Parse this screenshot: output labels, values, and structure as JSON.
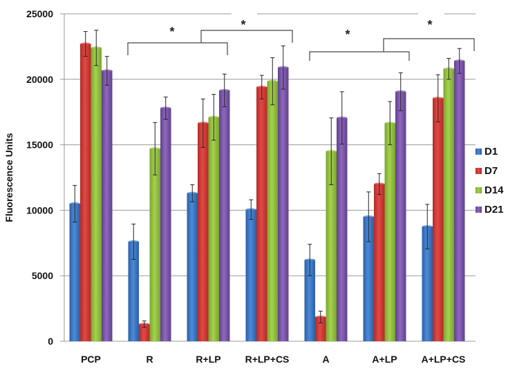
{
  "chart_data": {
    "type": "bar",
    "title": "",
    "xlabel": "",
    "ylabel": "Fluorescence Units",
    "ylim": [
      0,
      25000
    ],
    "yticks": [
      0,
      5000,
      10000,
      15000,
      20000,
      25000
    ],
    "grid": true,
    "legend_position": "right",
    "categories": [
      "PCP",
      "R",
      "R+LP",
      "R+LP+CS",
      "A",
      "A+LP",
      "A+LP+CS"
    ],
    "series": [
      {
        "name": "D1",
        "color": "#3b78c8",
        "values": [
          10500,
          7600,
          11300,
          10050,
          6200,
          9500,
          8750
        ],
        "errors": [
          1400,
          1350,
          650,
          750,
          1200,
          1900,
          1700
        ]
      },
      {
        "name": "D7",
        "color": "#d63a36",
        "values": [
          22700,
          1300,
          16650,
          19400,
          1850,
          12000,
          18550
        ],
        "errors": [
          950,
          250,
          1850,
          900,
          450,
          800,
          1800
        ]
      },
      {
        "name": "D14",
        "color": "#94c23e",
        "values": [
          22400,
          14700,
          17100,
          19850,
          14500,
          16650,
          20800
        ],
        "errors": [
          1350,
          2000,
          1750,
          1800,
          2550,
          1650,
          800
        ]
      },
      {
        "name": "D21",
        "color": "#7c56aa",
        "values": [
          20650,
          17800,
          19150,
          20900,
          17050,
          19050,
          21400
        ],
        "errors": [
          1100,
          850,
          1250,
          1650,
          2000,
          1450,
          950
        ]
      }
    ],
    "annotations": [
      {
        "text": "*",
        "from": "R",
        "to": "R+LP"
      },
      {
        "text": "*",
        "from": "R+LP",
        "to": "R+LP+CS"
      },
      {
        "text": "*",
        "from": "A",
        "to": "A+LP"
      },
      {
        "text": "*",
        "from": "A+LP",
        "to": "A+LP+CS"
      }
    ]
  }
}
